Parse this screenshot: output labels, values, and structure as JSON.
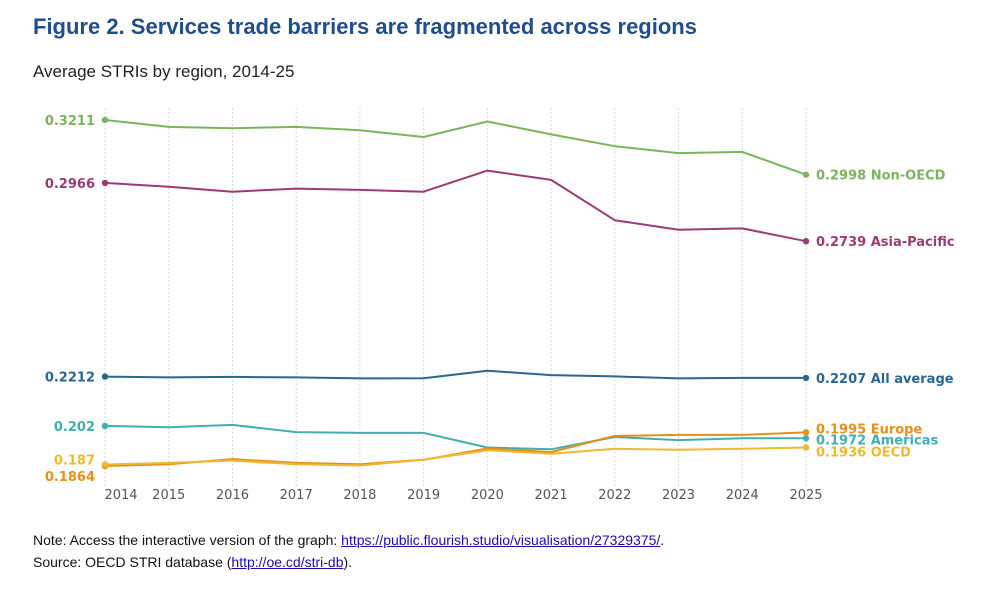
{
  "figure": {
    "title": "Figure 2. Services trade barriers are fragmented across regions",
    "subtitle": "Average STRIs by region, 2014-25"
  },
  "notes": {
    "note_prefix": "Note: Access the interactive version of the graph: ",
    "note_link": "https://public.flourish.studio/visualisation/27329375/",
    "note_suffix": ".",
    "source_prefix": "Source: OECD STRI database (",
    "source_link": "http://oe.cd/stri-db",
    "source_suffix": ")."
  },
  "chart_data": {
    "type": "line",
    "title": "Average STRIs by region, 2014-25",
    "categories": [
      "2014",
      "2015",
      "2016",
      "2017",
      "2018",
      "2019",
      "2020",
      "2021",
      "2022",
      "2023",
      "2024",
      "2025"
    ],
    "ylim": [
      0.18,
      0.325
    ],
    "grid": "vertical",
    "series": [
      {
        "name": "Non-OECD",
        "color": "#7ab55c",
        "values": [
          0.3211,
          0.3184,
          0.3179,
          0.3184,
          0.3171,
          0.3145,
          0.3205,
          0.3155,
          0.3109,
          0.3082,
          0.3087,
          0.2998
        ],
        "start_label": "0.3211",
        "end_label": "0.2998 Non-OECD"
      },
      {
        "name": "Asia-Pacific",
        "color": "#9b3b74",
        "values": [
          0.2966,
          0.2951,
          0.2932,
          0.2944,
          0.2939,
          0.2932,
          0.3014,
          0.2978,
          0.2821,
          0.2784,
          0.2789,
          0.2739
        ],
        "start_label": "0.2966",
        "end_label": "0.2739 Asia-Pacific"
      },
      {
        "name": "All average",
        "color": "#2b6691",
        "values": [
          0.2212,
          0.2209,
          0.2211,
          0.2209,
          0.2205,
          0.2206,
          0.2235,
          0.2218,
          0.2213,
          0.2205,
          0.2207,
          0.2207
        ],
        "start_label": "0.2212",
        "end_label": "0.2207 All average"
      },
      {
        "name": "Americas",
        "color": "#42aeb0",
        "values": [
          0.202,
          0.2015,
          0.2024,
          0.1996,
          0.1993,
          0.1993,
          0.1936,
          0.1929,
          0.1977,
          0.1965,
          0.1972,
          0.1972
        ],
        "start_label": "0.202",
        "end_label": "0.1972 Americas"
      },
      {
        "name": "Europe",
        "color": "#e5901a",
        "values": [
          0.1864,
          0.1871,
          0.1891,
          0.1876,
          0.1871,
          0.1888,
          0.1932,
          0.1918,
          0.1981,
          0.1985,
          0.1985,
          0.1995
        ],
        "start_label": "0.1864",
        "end_label": "0.1995 Europe"
      },
      {
        "name": "OECD",
        "color": "#f0b830",
        "values": [
          0.187,
          0.1876,
          0.1885,
          0.1871,
          0.1866,
          0.1888,
          0.1925,
          0.1912,
          0.1931,
          0.1927,
          0.1931,
          0.1936
        ],
        "start_label": "0.187",
        "end_label": "0.1936 OECD"
      }
    ]
  }
}
